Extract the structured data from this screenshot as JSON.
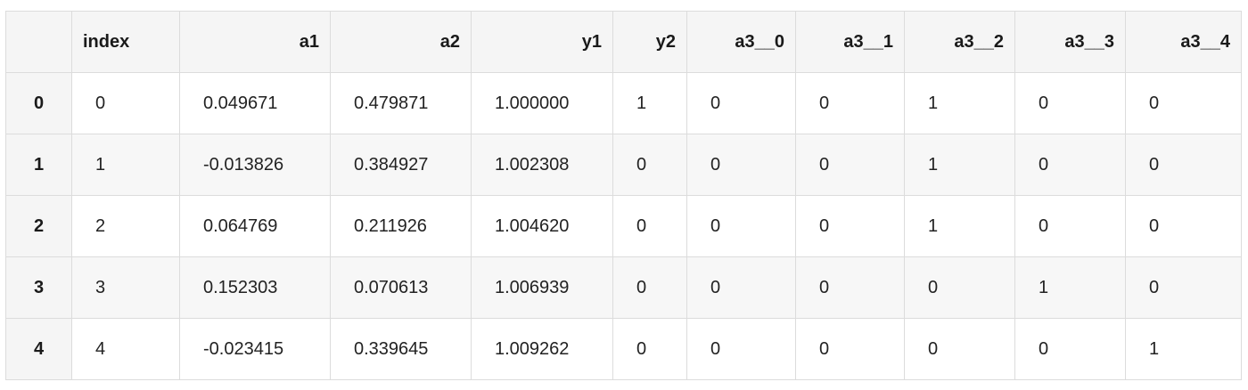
{
  "table": {
    "corner": "",
    "columns": [
      {
        "key": "index",
        "label": "index",
        "align": "left"
      },
      {
        "key": "a1",
        "label": "a1",
        "align": "right"
      },
      {
        "key": "a2",
        "label": "a2",
        "align": "right"
      },
      {
        "key": "y1",
        "label": "y1",
        "align": "right"
      },
      {
        "key": "y2",
        "label": "y2",
        "align": "right"
      },
      {
        "key": "a3__0",
        "label": "a3__0",
        "align": "right"
      },
      {
        "key": "a3__1",
        "label": "a3__1",
        "align": "right"
      },
      {
        "key": "a3__2",
        "label": "a3__2",
        "align": "right"
      },
      {
        "key": "a3__3",
        "label": "a3__3",
        "align": "right"
      },
      {
        "key": "a3__4",
        "label": "a3__4",
        "align": "right"
      }
    ],
    "rows": [
      {
        "label": "0",
        "cells": [
          "0",
          "0.049671",
          "0.479871",
          "1.000000",
          "1",
          "0",
          "0",
          "1",
          "0",
          "0"
        ]
      },
      {
        "label": "1",
        "cells": [
          "1",
          "-0.013826",
          "0.384927",
          "1.002308",
          "0",
          "0",
          "0",
          "1",
          "0",
          "0"
        ]
      },
      {
        "label": "2",
        "cells": [
          "2",
          "0.064769",
          "0.211926",
          "1.004620",
          "0",
          "0",
          "0",
          "1",
          "0",
          "0"
        ]
      },
      {
        "label": "3",
        "cells": [
          "3",
          "0.152303",
          "0.070613",
          "1.006939",
          "0",
          "0",
          "0",
          "0",
          "1",
          "0"
        ]
      },
      {
        "label": "4",
        "cells": [
          "4",
          "-0.023415",
          "0.339645",
          "1.009262",
          "0",
          "0",
          "0",
          "0",
          "0",
          "1"
        ]
      }
    ]
  }
}
